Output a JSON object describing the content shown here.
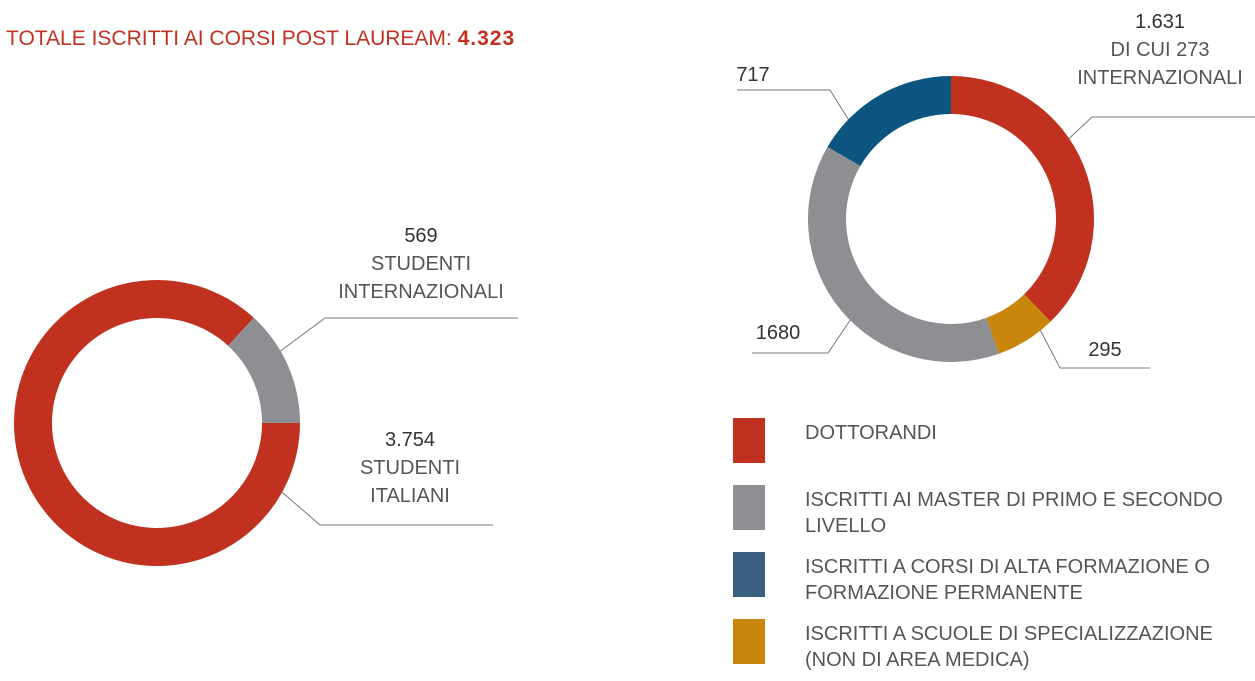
{
  "chart_data": [
    {
      "type": "donut",
      "title": "TOTALE ISCRITTI AI CORSI POST LAUREAM:",
      "total": "4.323",
      "categories": [
        "STUDENTI ITALIANI",
        "STUDENTI INTERNAZIONALI"
      ],
      "values": [
        3754,
        569
      ],
      "value_labels": [
        "3.754",
        "569"
      ],
      "colors": [
        "#c0311f",
        "#8e8f93"
      ],
      "start_angle": 90
    },
    {
      "type": "donut",
      "annotation": "DI CUI 273 INTERNAZIONALI",
      "values": [
        1631,
        295,
        1680,
        717
      ],
      "value_labels": [
        "1.631",
        "295",
        "1680",
        "717"
      ],
      "colors": [
        "#c0311f",
        "#c8860d",
        "#8e8f93",
        "#0b5580"
      ],
      "start_angle": 0,
      "legend": [
        {
          "label": "DOTTORANDI",
          "color": "#c0311f"
        },
        {
          "label": "ISCRITTI AI MASTER DI PRIMO E SECONDO LIVELLO",
          "color": "#8e8f93"
        },
        {
          "label": "ISCRITTI A CORSI DI ALTA FORMAZIONE O FORMAZIONE PERMANENTE",
          "color": "#3a5f82"
        },
        {
          "label": "ISCRITTI A SCUOLE DI SPECIALIZZAZIONE (NON DI AREA MEDICA)",
          "color": "#c8860d"
        }
      ]
    }
  ]
}
